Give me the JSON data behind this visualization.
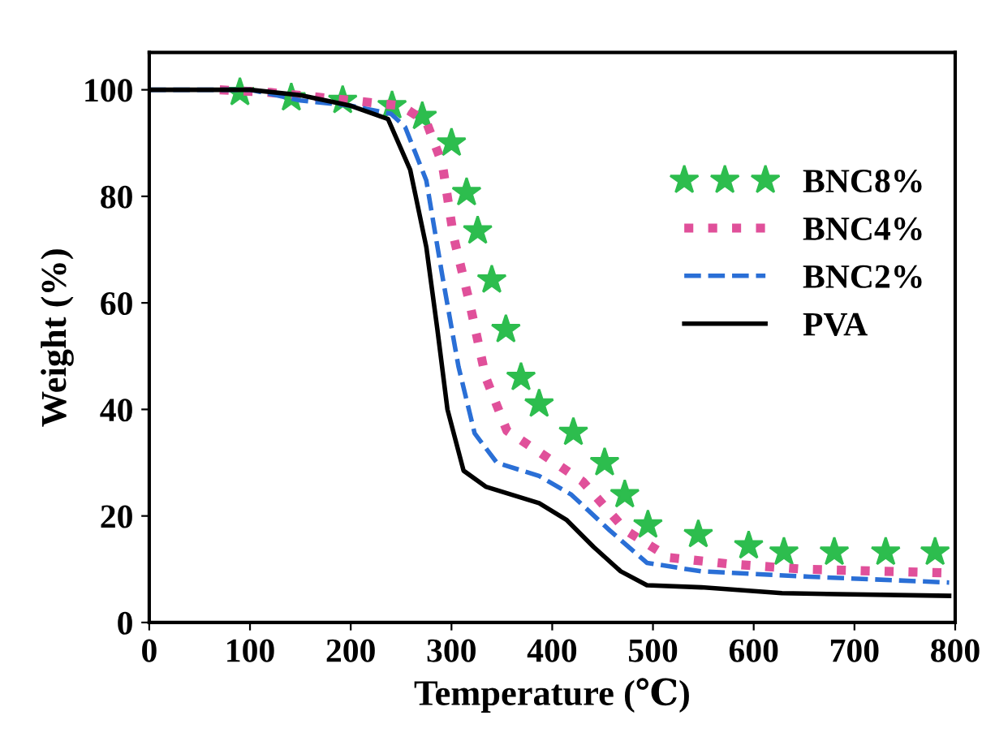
{
  "chart_data": {
    "type": "line",
    "xlabel": "Temperature (℃)",
    "ylabel": "Weight (%)",
    "xlim": [
      0,
      800
    ],
    "ylim": [
      0,
      107
    ],
    "xticks": [
      0,
      100,
      200,
      300,
      400,
      500,
      600,
      700,
      800
    ],
    "yticks": [
      0,
      20,
      40,
      60,
      80,
      100
    ],
    "grid": false,
    "legend": "top right",
    "series": [
      {
        "name": "BNC8%",
        "type": "scatter",
        "color": "#2dbd4e",
        "marker": "star",
        "x": [
          90,
          141,
          192,
          241,
          271,
          300,
          315,
          326,
          340,
          354,
          369,
          387,
          421,
          452,
          472,
          495,
          545,
          595,
          630,
          680,
          731,
          780
        ],
        "values": [
          99.5,
          98.5,
          98,
          97,
          95,
          90,
          80.7,
          73.5,
          64.3,
          55,
          46,
          41,
          35.7,
          30,
          24,
          18.3,
          16.5,
          14.4,
          13.2,
          13.2,
          13.2,
          13.2
        ]
      },
      {
        "name": "BNC4%",
        "color": "#e0509a",
        "marker": "none",
        "line_style": "dotted",
        "x": [
          70,
          120,
          200,
          250,
          275,
          291,
          302,
          318,
          334,
          355,
          387,
          430,
          473,
          516,
          575,
          650,
          794
        ],
        "values": [
          100,
          99.5,
          98,
          97,
          94,
          86,
          72.5,
          60,
          46,
          36,
          32,
          26.5,
          17.3,
          12.2,
          11,
          10,
          9.3
        ]
      },
      {
        "name": "BNC2%",
        "color": "#2a6fd6",
        "marker": "none",
        "line_style": "dashed",
        "x": [
          0,
          100,
          150,
          200,
          240,
          254,
          275,
          291,
          307,
          323,
          345,
          387,
          419,
          457,
          494,
          548,
          655,
          794
        ],
        "values": [
          100,
          100,
          98,
          97,
          95.5,
          93,
          83,
          65,
          48,
          35.5,
          30,
          27.5,
          24,
          17.3,
          11.2,
          9.6,
          8.6,
          7.5
        ]
      },
      {
        "name": "PVA",
        "color": "#000000",
        "marker": "none",
        "line_style": "solid",
        "x": [
          0,
          100,
          150,
          200,
          237,
          259,
          275,
          286,
          296,
          312,
          334,
          387,
          414,
          441,
          468,
          494,
          548,
          628,
          794
        ],
        "values": [
          100,
          100,
          99,
          97,
          94.5,
          85,
          70.5,
          55,
          40,
          28.5,
          25.5,
          22.4,
          19.3,
          14.2,
          9.6,
          7,
          6.6,
          5.5,
          5
        ]
      }
    ]
  }
}
